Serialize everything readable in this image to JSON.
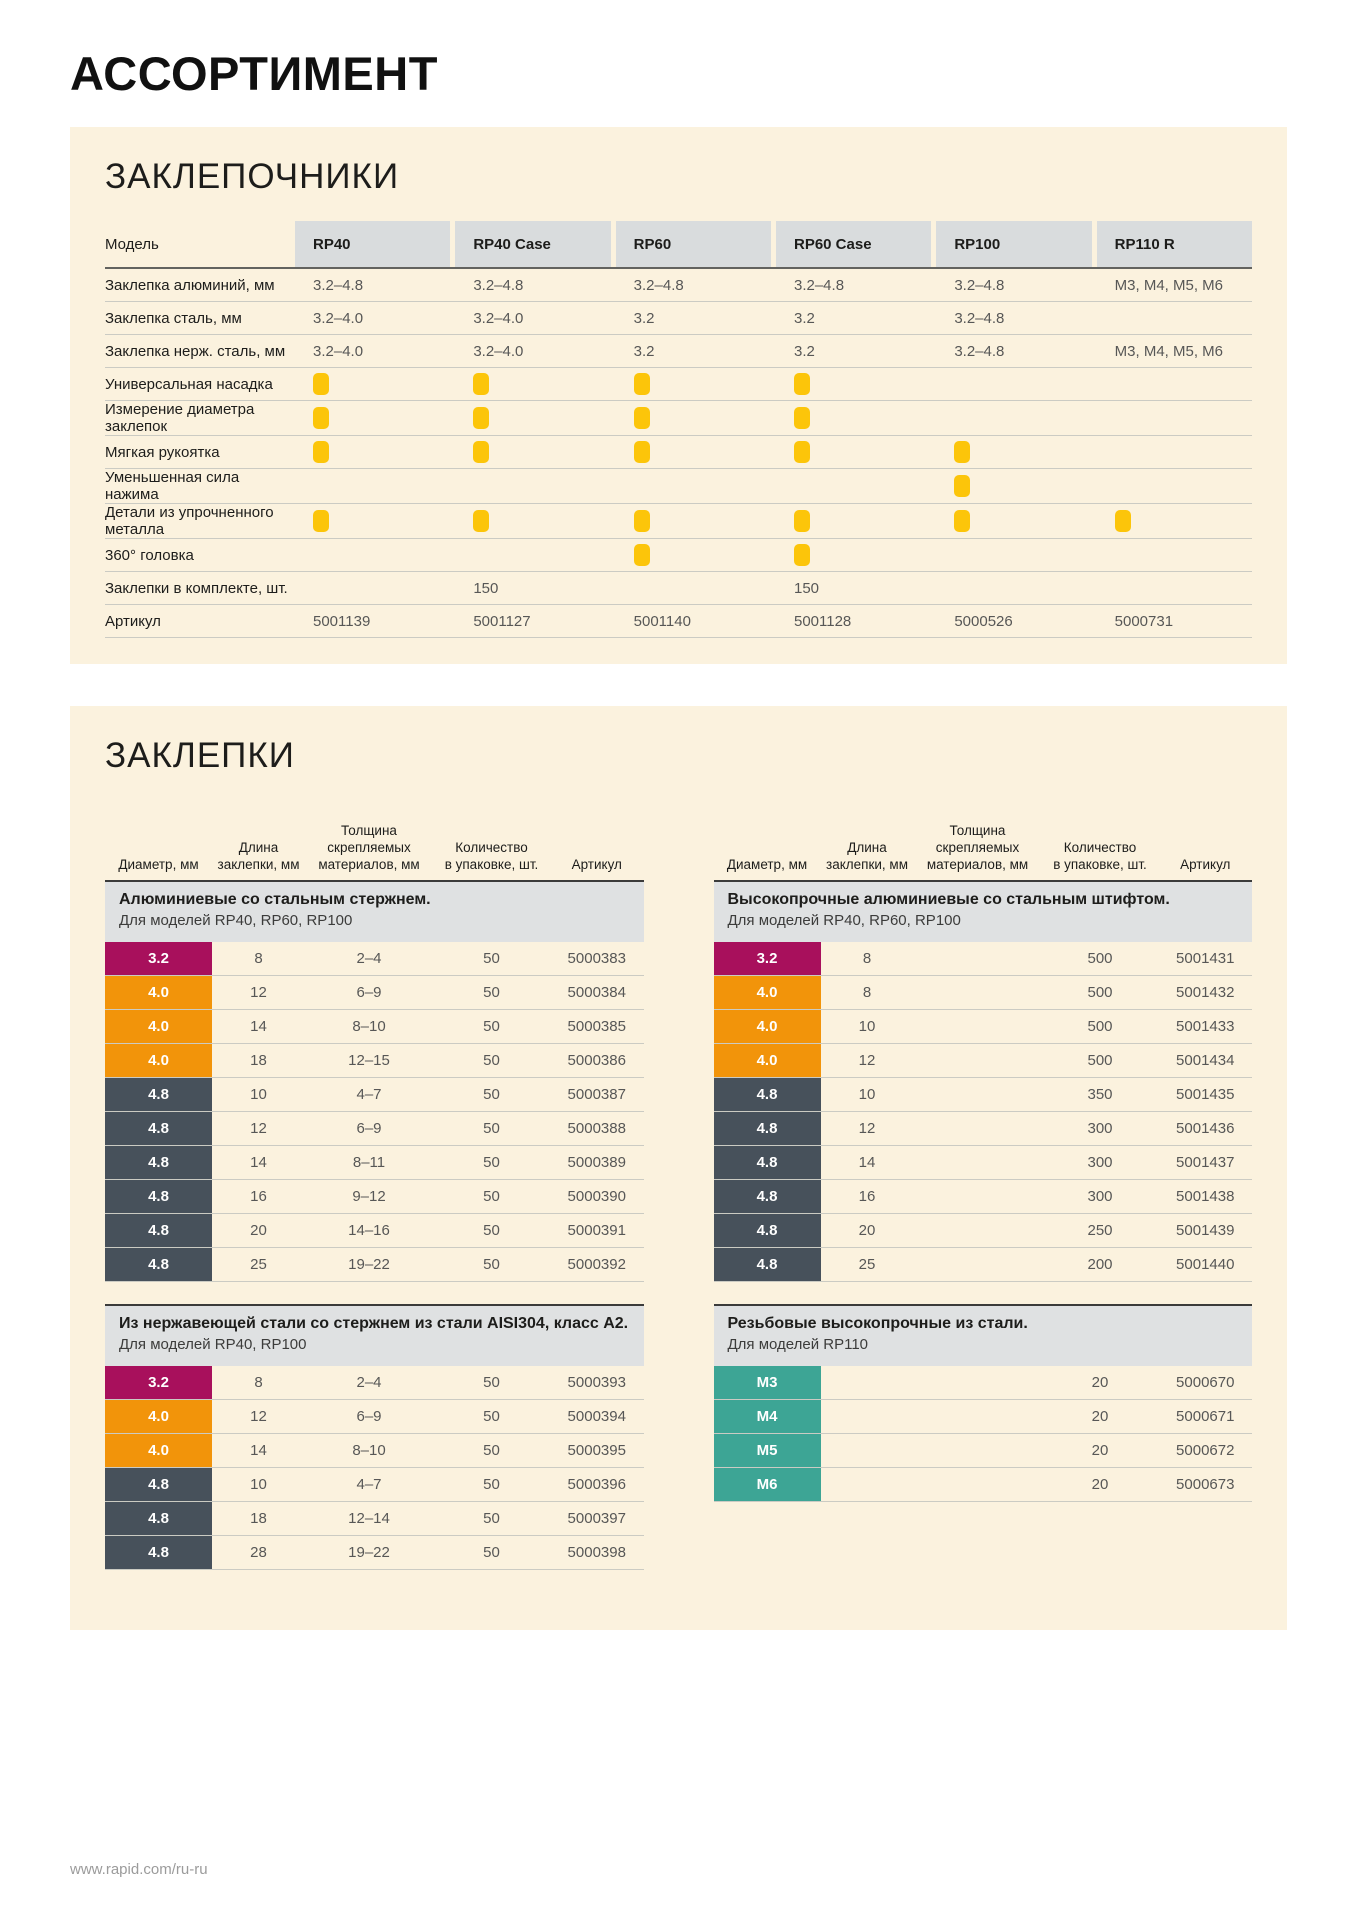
{
  "page": {
    "title": "АССОРТИМЕНТ",
    "footer_url": "www.rapid.com/ru-ru"
  },
  "colors": {
    "panel_bg": "#fbf2de",
    "model_header_bg": "#d9dcdd",
    "band_bg": "#dfe1e2",
    "dot_yellow": "#fcc50a",
    "magenta": "#a8105c",
    "orange": "#f2940a",
    "slate": "#47515b",
    "teal": "#3da595"
  },
  "riveters": {
    "section_title": "ЗАКЛЕПОЧНИКИ",
    "label_header": "Модель",
    "models": [
      "RP40",
      "RP40 Case",
      "RP60",
      "RP60 Case",
      "RP100",
      "RP110 R"
    ],
    "rows": [
      {
        "label": "Заклепка алюминий, мм",
        "cells": [
          "3.2–4.8",
          "3.2–4.8",
          "3.2–4.8",
          "3.2–4.8",
          "3.2–4.8",
          "M3, M4, M5, M6"
        ]
      },
      {
        "label": "Заклепка сталь, мм",
        "cells": [
          "3.2–4.0",
          "3.2–4.0",
          "3.2",
          "3.2",
          "3.2–4.8",
          ""
        ]
      },
      {
        "label": "Заклепка нерж. сталь, мм",
        "cells": [
          "3.2–4.0",
          "3.2–4.0",
          "3.2",
          "3.2",
          "3.2–4.8",
          "M3, M4, M5, M6"
        ]
      },
      {
        "label": "Универсальная насадка",
        "cells": [
          true,
          true,
          true,
          true,
          false,
          false
        ]
      },
      {
        "label": "Измерение диаметра заклепок",
        "cells": [
          true,
          true,
          true,
          true,
          false,
          false
        ]
      },
      {
        "label": "Мягкая рукоятка",
        "cells": [
          true,
          true,
          true,
          true,
          true,
          false
        ]
      },
      {
        "label": "Уменьшенная сила нажима",
        "cells": [
          false,
          false,
          false,
          false,
          true,
          false
        ]
      },
      {
        "label": "Детали из упрочненного металла",
        "cells": [
          true,
          true,
          true,
          true,
          true,
          true
        ]
      },
      {
        "label": "360° головка",
        "cells": [
          false,
          false,
          true,
          true,
          false,
          false
        ]
      },
      {
        "label": "Заклепки в комплекте, шт.",
        "cells": [
          "",
          "150",
          "",
          "150",
          "",
          ""
        ]
      },
      {
        "label": "Артикул",
        "cells": [
          "5001139",
          "5001127",
          "5001140",
          "5001128",
          "5000526",
          "5000731"
        ]
      }
    ]
  },
  "rivets": {
    "section_title": "ЗАКЛЕПКИ",
    "column_headers": [
      [
        "Диаметр, мм"
      ],
      [
        "Длина",
        "заклепки, мм"
      ],
      [
        "Толщина",
        "скрепляемых",
        "материалов, мм"
      ],
      [
        "Количество",
        "в упаковке, шт."
      ],
      [
        "Артикул"
      ]
    ],
    "tables": [
      {
        "id": "aluminium-steel-core",
        "column": "left",
        "show_headers": true,
        "title": "Алюминиевые со стальным стержнем.",
        "subtitle": "Для моделей RP40, RP60, RP100",
        "rows": [
          {
            "dia": "3.2",
            "color": "magenta",
            "len": "8",
            "thk": "2–4",
            "qty": "50",
            "art": "5000383"
          },
          {
            "dia": "4.0",
            "color": "orange",
            "len": "12",
            "thk": "6–9",
            "qty": "50",
            "art": "5000384"
          },
          {
            "dia": "4.0",
            "color": "orange",
            "len": "14",
            "thk": "8–10",
            "qty": "50",
            "art": "5000385"
          },
          {
            "dia": "4.0",
            "color": "orange",
            "len": "18",
            "thk": "12–15",
            "qty": "50",
            "art": "5000386"
          },
          {
            "dia": "4.8",
            "color": "slate",
            "len": "10",
            "thk": "4–7",
            "qty": "50",
            "art": "5000387"
          },
          {
            "dia": "4.8",
            "color": "slate",
            "len": "12",
            "thk": "6–9",
            "qty": "50",
            "art": "5000388"
          },
          {
            "dia": "4.8",
            "color": "slate",
            "len": "14",
            "thk": "8–11",
            "qty": "50",
            "art": "5000389"
          },
          {
            "dia": "4.8",
            "color": "slate",
            "len": "16",
            "thk": "9–12",
            "qty": "50",
            "art": "5000390"
          },
          {
            "dia": "4.8",
            "color": "slate",
            "len": "20",
            "thk": "14–16",
            "qty": "50",
            "art": "5000391"
          },
          {
            "dia": "4.8",
            "color": "slate",
            "len": "25",
            "thk": "19–22",
            "qty": "50",
            "art": "5000392"
          }
        ]
      },
      {
        "id": "high-strength-aluminium",
        "column": "right",
        "show_headers": true,
        "title": "Высокопрочные алюминиевые со стальным штифтом.",
        "subtitle": "Для моделей RP40, RP60, RP100",
        "rows": [
          {
            "dia": "3.2",
            "color": "magenta",
            "len": "8",
            "thk": "",
            "qty": "500",
            "art": "5001431"
          },
          {
            "dia": "4.0",
            "color": "orange",
            "len": "8",
            "thk": "",
            "qty": "500",
            "art": "5001432"
          },
          {
            "dia": "4.0",
            "color": "orange",
            "len": "10",
            "thk": "",
            "qty": "500",
            "art": "5001433"
          },
          {
            "dia": "4.0",
            "color": "orange",
            "len": "12",
            "thk": "",
            "qty": "500",
            "art": "5001434"
          },
          {
            "dia": "4.8",
            "color": "slate",
            "len": "10",
            "thk": "",
            "qty": "350",
            "art": "5001435"
          },
          {
            "dia": "4.8",
            "color": "slate",
            "len": "12",
            "thk": "",
            "qty": "300",
            "art": "5001436"
          },
          {
            "dia": "4.8",
            "color": "slate",
            "len": "14",
            "thk": "",
            "qty": "300",
            "art": "5001437"
          },
          {
            "dia": "4.8",
            "color": "slate",
            "len": "16",
            "thk": "",
            "qty": "300",
            "art": "5001438"
          },
          {
            "dia": "4.8",
            "color": "slate",
            "len": "20",
            "thk": "",
            "qty": "250",
            "art": "5001439"
          },
          {
            "dia": "4.8",
            "color": "slate",
            "len": "25",
            "thk": "",
            "qty": "200",
            "art": "5001440"
          }
        ]
      },
      {
        "id": "stainless-aisi304",
        "column": "left",
        "show_headers": false,
        "title": "Из нержавеющей стали со стержнем из стали AISI304, класс А2.",
        "subtitle": "Для моделей RP40, RP100",
        "rows": [
          {
            "dia": "3.2",
            "color": "magenta",
            "len": "8",
            "thk": "2–4",
            "qty": "50",
            "art": "5000393"
          },
          {
            "dia": "4.0",
            "color": "orange",
            "len": "12",
            "thk": "6–9",
            "qty": "50",
            "art": "5000394"
          },
          {
            "dia": "4.0",
            "color": "orange",
            "len": "14",
            "thk": "8–10",
            "qty": "50",
            "art": "5000395"
          },
          {
            "dia": "4.8",
            "color": "slate",
            "len": "10",
            "thk": "4–7",
            "qty": "50",
            "art": "5000396"
          },
          {
            "dia": "4.8",
            "color": "slate",
            "len": "18",
            "thk": "12–14",
            "qty": "50",
            "art": "5000397"
          },
          {
            "dia": "4.8",
            "color": "slate",
            "len": "28",
            "thk": "19–22",
            "qty": "50",
            "art": "5000398"
          }
        ]
      },
      {
        "id": "threaded-high-strength-steel",
        "column": "right",
        "show_headers": false,
        "title": "Резьбовые высокопрочные из стали.",
        "subtitle": "Для моделей RP110",
        "rows": [
          {
            "dia": "M3",
            "color": "teal",
            "len": "",
            "thk": "",
            "qty": "20",
            "art": "5000670"
          },
          {
            "dia": "M4",
            "color": "teal",
            "len": "",
            "thk": "",
            "qty": "20",
            "art": "5000671"
          },
          {
            "dia": "M5",
            "color": "teal",
            "len": "",
            "thk": "",
            "qty": "20",
            "art": "5000672"
          },
          {
            "dia": "M6",
            "color": "teal",
            "len": "",
            "thk": "",
            "qty": "20",
            "art": "5000673"
          }
        ]
      }
    ]
  }
}
